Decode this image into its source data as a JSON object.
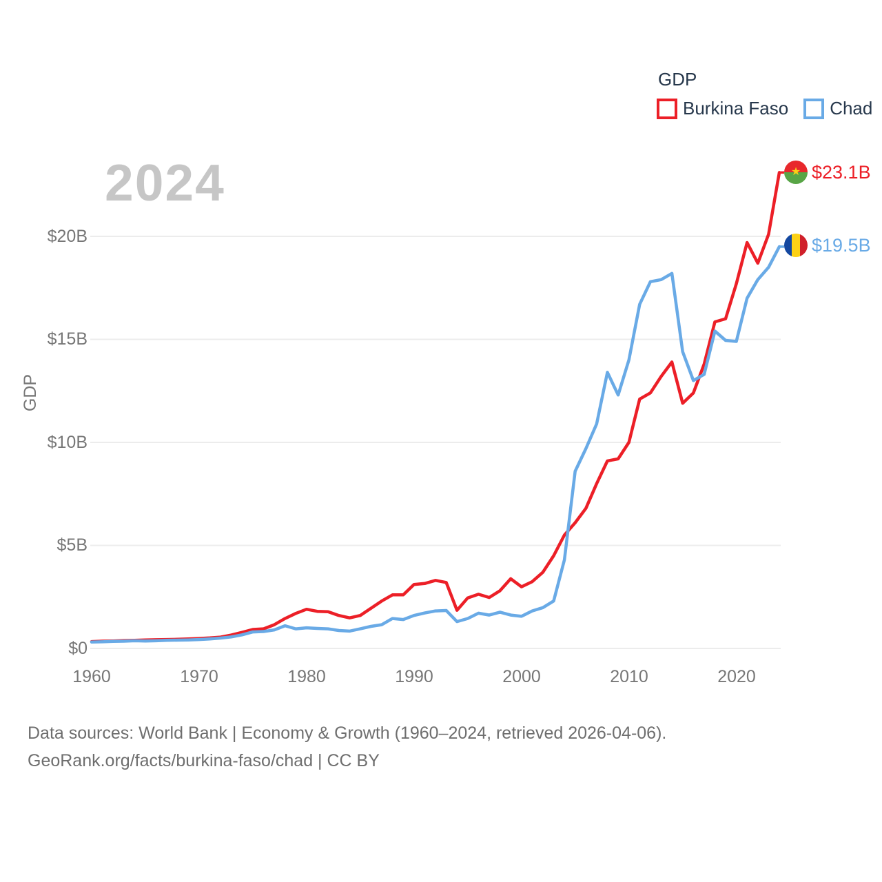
{
  "watermark": "2024",
  "legend": {
    "title": "GDP",
    "items": [
      {
        "label": "Burkina Faso",
        "color": "#ec1f27"
      },
      {
        "label": "Chad",
        "color": "#69aae6"
      }
    ]
  },
  "end_labels": [
    {
      "series": "Burkina Faso",
      "value": "$23.1B",
      "flag": "burkina-faso-flag",
      "color": "#ec1f27"
    },
    {
      "series": "Chad",
      "value": "$19.5B",
      "flag": "chad-flag",
      "color": "#69aae6"
    }
  ],
  "footer": {
    "line1": "Data sources: World Bank | Economy & Growth (1960–2024, retrieved 2026-04-06).",
    "line2": "GeoRank.org/facts/burkina-faso/chad | CC BY"
  },
  "chart_data": {
    "type": "line",
    "title": "2024",
    "xlabel": "",
    "ylabel": "GDP",
    "grid": true,
    "legend_position": "top-right",
    "ylim": [
      0,
      20
    ],
    "xlim": [
      1960,
      2024
    ],
    "x_ticks": [
      1960,
      1970,
      1980,
      1990,
      2000,
      2010,
      2020
    ],
    "y_ticks": [
      0,
      5,
      10,
      15,
      20
    ],
    "y_tick_labels": [
      "$0",
      "$5B",
      "$10B",
      "$15B",
      "$20B"
    ],
    "x": [
      1960,
      1961,
      1962,
      1963,
      1964,
      1965,
      1966,
      1967,
      1968,
      1969,
      1970,
      1971,
      1972,
      1973,
      1974,
      1975,
      1976,
      1977,
      1978,
      1979,
      1980,
      1981,
      1982,
      1983,
      1984,
      1985,
      1986,
      1987,
      1988,
      1989,
      1990,
      1991,
      1992,
      1993,
      1994,
      1995,
      1996,
      1997,
      1998,
      1999,
      2000,
      2001,
      2002,
      2003,
      2004,
      2005,
      2006,
      2007,
      2008,
      2009,
      2010,
      2011,
      2012,
      2013,
      2014,
      2015,
      2016,
      2017,
      2018,
      2019,
      2020,
      2021,
      2022,
      2023,
      2024
    ],
    "series": [
      {
        "name": "Burkina Faso",
        "color": "#ec1f27",
        "unit": "billion USD",
        "values": [
          0.33,
          0.35,
          0.36,
          0.38,
          0.39,
          0.41,
          0.42,
          0.43,
          0.44,
          0.46,
          0.48,
          0.51,
          0.55,
          0.65,
          0.78,
          0.92,
          0.95,
          1.15,
          1.45,
          1.7,
          1.9,
          1.8,
          1.78,
          1.6,
          1.48,
          1.6,
          1.95,
          2.3,
          2.6,
          2.6,
          3.1,
          3.15,
          3.3,
          3.2,
          1.85,
          2.45,
          2.63,
          2.47,
          2.8,
          3.38,
          2.99,
          3.24,
          3.7,
          4.5,
          5.5,
          6.1,
          6.8,
          8.0,
          9.1,
          9.2,
          10.0,
          12.1,
          12.4,
          13.2,
          13.9,
          11.9,
          12.4,
          13.8,
          15.85,
          16.0,
          17.7,
          19.7,
          18.7,
          20.1,
          23.1
        ]
      },
      {
        "name": "Chad",
        "color": "#69aae6",
        "unit": "billion USD",
        "values": [
          0.31,
          0.32,
          0.34,
          0.35,
          0.37,
          0.36,
          0.37,
          0.39,
          0.4,
          0.41,
          0.43,
          0.46,
          0.5,
          0.56,
          0.66,
          0.8,
          0.82,
          0.9,
          1.1,
          0.95,
          1.0,
          0.97,
          0.95,
          0.87,
          0.84,
          0.95,
          1.07,
          1.15,
          1.45,
          1.4,
          1.6,
          1.72,
          1.82,
          1.84,
          1.3,
          1.45,
          1.71,
          1.62,
          1.76,
          1.62,
          1.56,
          1.82,
          1.98,
          2.3,
          4.3,
          8.6,
          9.7,
          10.9,
          13.4,
          12.3,
          14.0,
          16.7,
          17.8,
          17.9,
          18.2,
          14.4,
          13.0,
          13.3,
          15.4,
          14.95,
          14.9,
          17.0,
          17.9,
          18.5,
          19.5
        ]
      }
    ]
  }
}
